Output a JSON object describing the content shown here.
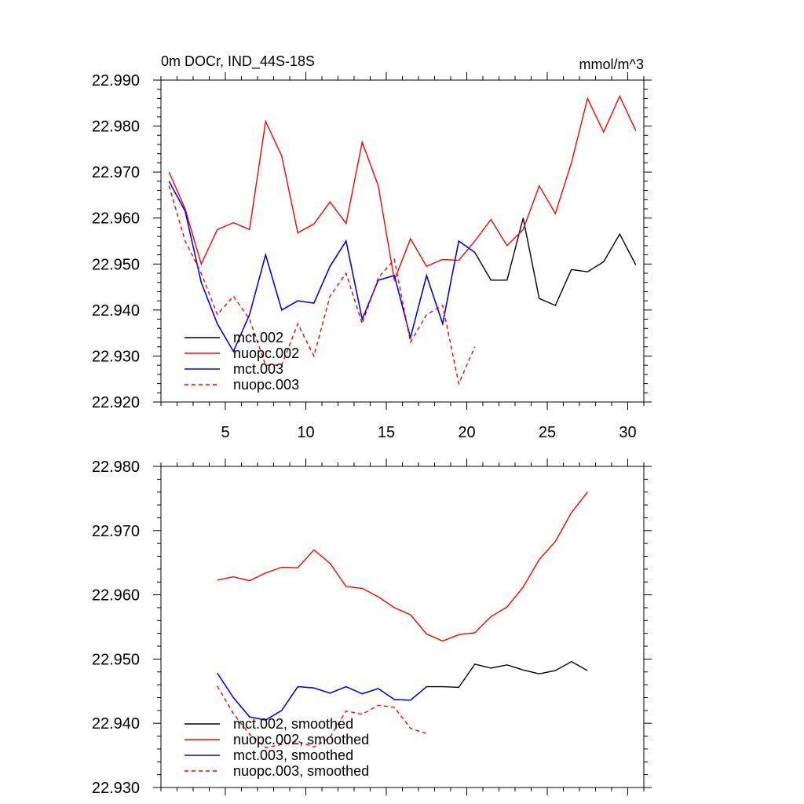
{
  "chart_data": [
    {
      "type": "line",
      "title_left": "0m DOCr, IND_44S-18S",
      "title_right": "mmol/m^3",
      "xlabel": "",
      "ylabel": "",
      "xlim": [
        1,
        31
      ],
      "ylim": [
        22.92,
        22.99
      ],
      "xticks": [
        5,
        10,
        15,
        20,
        25,
        30
      ],
      "xtick_labels": [
        "5",
        "10",
        "15",
        "20",
        "25",
        "30"
      ],
      "yticks": [
        22.92,
        22.93,
        22.94,
        22.95,
        22.96,
        22.97,
        22.98,
        22.99
      ],
      "ytick_labels": [
        "22.920",
        "22.930",
        "22.940",
        "22.950",
        "22.960",
        "22.970",
        "22.980",
        "22.990"
      ],
      "legend_position": "bottom-left",
      "series": [
        {
          "name": "mct.002",
          "color": "#000000",
          "dash": "solid",
          "x": [
            1.5,
            2.5,
            3.5,
            4.5,
            5.5,
            6.5,
            7.5,
            8.5,
            9.5,
            10.5,
            11.5,
            12.5,
            13.5,
            14.5,
            15.5,
            16.5,
            17.5,
            18.5,
            19.5,
            20.5,
            21.5,
            22.5,
            23.5,
            24.5,
            25.5,
            26.5,
            27.5,
            28.5,
            29.5,
            30.5
          ],
          "values": [
            22.968,
            22.9615,
            22.946,
            22.937,
            22.931,
            22.939,
            22.952,
            22.94,
            22.942,
            22.9415,
            22.9495,
            22.955,
            22.938,
            22.9465,
            22.9475,
            22.934,
            22.9475,
            22.937,
            22.955,
            22.9525,
            22.9465,
            22.9465,
            22.96,
            22.9425,
            22.941,
            22.9488,
            22.9483,
            22.9505,
            22.9565,
            22.9498
          ]
        },
        {
          "name": "nuopc.002",
          "color": "#ff0000",
          "dash": "solid",
          "x": [
            1.5,
            2.5,
            3.5,
            4.5,
            5.5,
            6.5,
            7.5,
            8.5,
            9.5,
            10.5,
            11.5,
            12.5,
            13.5,
            14.5,
            15.5,
            16.5,
            17.5,
            18.5,
            19.5,
            20.5,
            21.5,
            22.5,
            23.5,
            24.5,
            25.5,
            26.5,
            27.5,
            28.5,
            29.5,
            30.5
          ],
          "values": [
            22.97,
            22.962,
            22.95,
            22.9575,
            22.959,
            22.9575,
            22.981,
            22.9735,
            22.9568,
            22.9587,
            22.9635,
            22.9588,
            22.9765,
            22.967,
            22.9465,
            22.9555,
            22.9495,
            22.951,
            22.9508,
            22.955,
            22.9597,
            22.954,
            22.9575,
            22.967,
            22.961,
            22.972,
            22.986,
            22.9787,
            22.9865,
            22.979
          ]
        },
        {
          "name": "mct.003",
          "color": "#0000ff",
          "dash": "solid",
          "x": [
            1.5,
            2.5,
            3.5,
            4.5,
            5.5,
            6.5,
            7.5,
            8.5,
            9.5,
            10.5,
            11.5,
            12.5,
            13.5,
            14.5,
            15.5,
            16.5,
            17.5,
            18.5,
            19.5,
            20.5
          ],
          "values": [
            22.968,
            22.9615,
            22.946,
            22.937,
            22.931,
            22.939,
            22.952,
            22.94,
            22.942,
            22.9415,
            22.9495,
            22.955,
            22.938,
            22.9465,
            22.9475,
            22.934,
            22.9475,
            22.937,
            22.955,
            22.9525
          ]
        },
        {
          "name": "nuopc.003",
          "color": "#ff0000",
          "dash": "dashed",
          "x": [
            1.5,
            2.5,
            3.5,
            4.5,
            5.5,
            6.5,
            7.5,
            8.5,
            9.5,
            10.5,
            11.5,
            12.5,
            13.5,
            14.5,
            15.5,
            16.5,
            17.5,
            18.5,
            19.5,
            20.5
          ],
          "values": [
            22.967,
            22.955,
            22.948,
            22.939,
            22.943,
            22.938,
            22.928,
            22.928,
            22.937,
            22.93,
            22.943,
            22.948,
            22.937,
            22.947,
            22.951,
            22.933,
            22.939,
            22.941,
            22.924,
            22.932
          ]
        }
      ]
    },
    {
      "type": "line",
      "title_left": "",
      "title_right": "",
      "xlabel": "",
      "ylabel": "",
      "xlim": [
        1,
        31
      ],
      "ylim": [
        22.93,
        22.98
      ],
      "xticks": [
        5,
        10,
        15,
        20,
        25,
        30
      ],
      "xtick_labels": [],
      "yticks": [
        22.93,
        22.94,
        22.95,
        22.96,
        22.97,
        22.98
      ],
      "ytick_labels": [
        "22.930",
        "22.940",
        "22.950",
        "22.960",
        "22.970",
        "22.980"
      ],
      "legend_position": "bottom-left",
      "series": [
        {
          "name": "mct.002, smoothed",
          "color": "#000000",
          "dash": "solid",
          "x": [
            4.5,
            5.5,
            6.5,
            7.5,
            8.5,
            9.5,
            10.5,
            11.5,
            12.5,
            13.5,
            14.5,
            15.5,
            16.5,
            17.5,
            18.5,
            19.5,
            20.5,
            21.5,
            22.5,
            23.5,
            24.5,
            25.5,
            26.5,
            27.5
          ],
          "values": [
            22.9478,
            22.944,
            22.941,
            22.9405,
            22.942,
            22.9457,
            22.9455,
            22.9447,
            22.9457,
            22.9446,
            22.9454,
            22.9437,
            22.9436,
            22.9457,
            22.9457,
            22.9456,
            22.9492,
            22.9486,
            22.9491,
            22.9483,
            22.9477,
            22.9482,
            22.9496,
            22.9482
          ]
        },
        {
          "name": "nuopc.002, smoothed",
          "color": "#ff0000",
          "dash": "solid",
          "x": [
            4.5,
            5.5,
            6.5,
            7.5,
            8.5,
            9.5,
            10.5,
            11.5,
            12.5,
            13.5,
            14.5,
            15.5,
            16.5,
            17.5,
            18.5,
            19.5,
            20.5,
            21.5,
            22.5,
            23.5,
            24.5,
            25.5,
            26.5,
            27.5
          ],
          "values": [
            22.9623,
            22.9628,
            22.9622,
            22.9634,
            22.9643,
            22.9642,
            22.967,
            22.9649,
            22.9613,
            22.961,
            22.9597,
            22.958,
            22.9569,
            22.9539,
            22.9528,
            22.9538,
            22.9541,
            22.9566,
            22.9581,
            22.9612,
            22.9655,
            22.9683,
            22.9728,
            22.976
          ]
        },
        {
          "name": "mct.003, smoothed",
          "color": "#0000ff",
          "dash": "solid",
          "x": [
            4.5,
            5.5,
            6.5,
            7.5,
            8.5,
            9.5,
            10.5,
            11.5,
            12.5,
            13.5,
            14.5,
            15.5,
            16.5,
            17.5
          ],
          "values": [
            22.9478,
            22.944,
            22.941,
            22.9405,
            22.942,
            22.9457,
            22.9455,
            22.9447,
            22.9457,
            22.9446,
            22.9454,
            22.9437,
            22.9436,
            22.9457
          ]
        },
        {
          "name": "nuopc.003, smoothed",
          "color": "#ff0000",
          "dash": "dashed",
          "x": [
            4.5,
            5.5,
            6.5,
            7.5,
            8.5,
            9.5,
            10.5,
            11.5,
            12.5,
            13.5,
            14.5,
            15.5,
            16.5,
            17.5
          ],
          "values": [
            22.9458,
            22.9415,
            22.9383,
            22.9362,
            22.9367,
            22.9372,
            22.9363,
            22.9378,
            22.9419,
            22.9414,
            22.9428,
            22.9425,
            22.9392,
            22.9384
          ]
        }
      ]
    }
  ]
}
